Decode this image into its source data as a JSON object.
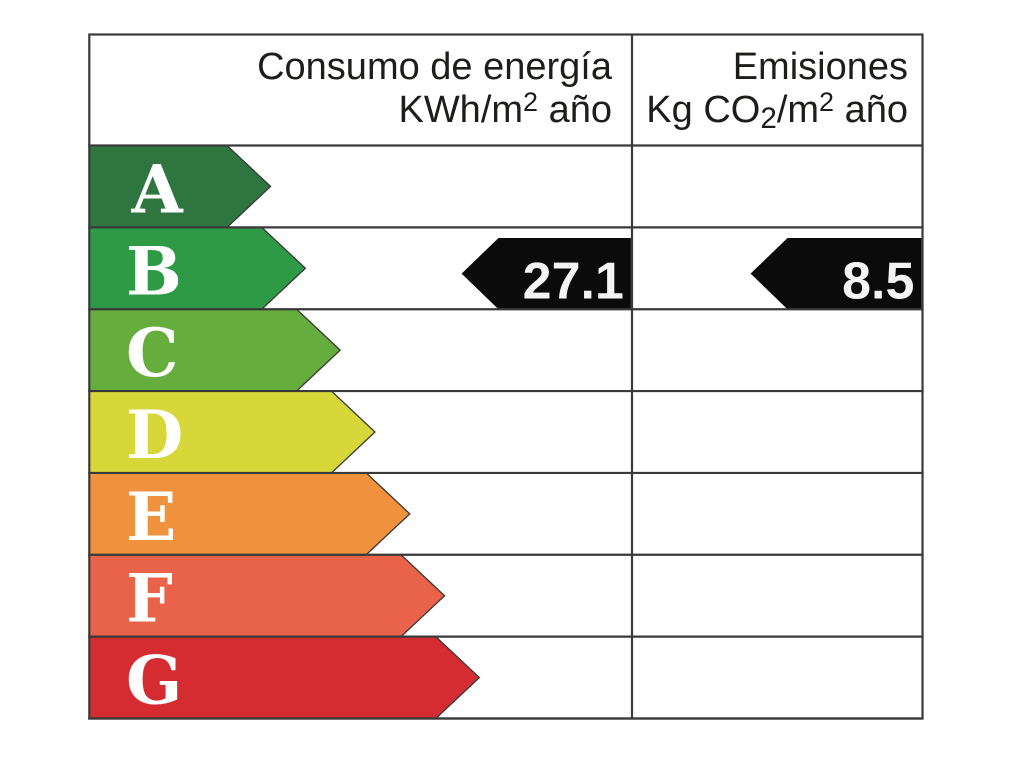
{
  "label_title": "Energy efficiency rating label",
  "table": {
    "line_color": "#3a3a3a",
    "background": "#ffffff",
    "header": {
      "consumption": {
        "line1": "Consumo de energía",
        "unit_base": "KWh/m",
        "unit_sup": "2",
        "unit_rest": " año"
      },
      "emissions": {
        "line1": "Emisiones",
        "unit_base": "Kg CO",
        "unit_sub": "2",
        "unit_mid": "/m",
        "unit_sup": "2",
        "unit_rest": " año"
      }
    },
    "scale": [
      {
        "label": "A",
        "color": "#2e7540"
      },
      {
        "label": "B",
        "color": "#2f9a45"
      },
      {
        "label": "C",
        "color": "#65ae3e"
      },
      {
        "label": "D",
        "color": "#d8d73a"
      },
      {
        "label": "E",
        "color": "#f0913d"
      },
      {
        "label": "F",
        "color": "#e9624a"
      },
      {
        "label": "G",
        "color": "#d42c31"
      }
    ],
    "letter_color": "#ffffff",
    "indicator": {
      "row": "B",
      "arrow_color": "#0b0b0b",
      "value_color": "#f4f4f4",
      "consumption_value": "27.1",
      "emissions_value": "8.5"
    }
  },
  "chart_data": {
    "type": "table",
    "title": "Energy efficiency certificate scale",
    "columns": [
      "Consumo de energía KWh/m2 año",
      "Emisiones Kg CO2/m2 año"
    ],
    "categories": [
      "A",
      "B",
      "C",
      "D",
      "E",
      "F",
      "G"
    ],
    "category_colors": [
      "#2e7540",
      "#2f9a45",
      "#65ae3e",
      "#d8d73a",
      "#f0913d",
      "#e9624a",
      "#d42c31"
    ],
    "values": [
      {
        "name": "Consumo de energía",
        "value": 27.1,
        "unit": "KWh/m2 año",
        "rating": "B"
      },
      {
        "name": "Emisiones",
        "value": 8.5,
        "unit": "Kg CO2/m2 año",
        "rating": "B"
      }
    ]
  }
}
